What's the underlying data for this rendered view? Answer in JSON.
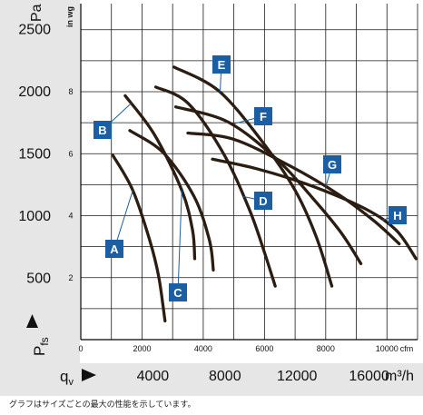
{
  "chart_data": {
    "type": "line",
    "ylabel_unit_pa": "Pa",
    "ylabel_unit_inwg": "in wg",
    "ylabel_symbol": "P",
    "ylabel_subscript": "fs",
    "xlabel_symbol": "q",
    "xlabel_subscript": "v",
    "x_unit_cfm": "cfm",
    "x_unit_m3h": "m³/h",
    "x_cfm_range": [
      0,
      11000
    ],
    "y_pa_range": [
      0,
      2700
    ],
    "grid": true,
    "pa_ticks": [
      {
        "value": 500,
        "label": "500"
      },
      {
        "value": 1000,
        "label": "1000"
      },
      {
        "value": 1500,
        "label": "1500"
      },
      {
        "value": 2000,
        "label": "2000"
      },
      {
        "value": 2500,
        "label": "2500"
      }
    ],
    "inwg_ticks": [
      {
        "value": 498,
        "label": "2"
      },
      {
        "value": 996,
        "label": "4"
      },
      {
        "value": 1494,
        "label": "6"
      },
      {
        "value": 1992,
        "label": "8"
      }
    ],
    "cfm_ticks": [
      {
        "value": 0,
        "label": "0"
      },
      {
        "value": 2000,
        "label": "2000"
      },
      {
        "value": 4000,
        "label": "4000"
      },
      {
        "value": 6000,
        "label": "6000"
      },
      {
        "value": 8000,
        "label": "8000"
      },
      {
        "value": 10000,
        "label": "10000"
      }
    ],
    "m3h_ticks": [
      {
        "value": 4000,
        "label": "4000"
      },
      {
        "value": 8000,
        "label": "8000"
      },
      {
        "value": 12000,
        "label": "12000"
      },
      {
        "value": 16000,
        "label": "16000"
      }
    ],
    "series": [
      {
        "name": "A",
        "points": [
          [
            1050,
            1480
          ],
          [
            1700,
            1200
          ],
          [
            2250,
            800
          ],
          [
            2550,
            500
          ],
          [
            2750,
            150
          ]
        ]
      },
      {
        "name": "B",
        "points": [
          [
            1450,
            1960
          ],
          [
            2400,
            1650
          ],
          [
            3300,
            1200
          ],
          [
            3650,
            880
          ],
          [
            3720,
            650
          ]
        ]
      },
      {
        "name": "C",
        "points": [
          [
            1600,
            1680
          ],
          [
            2700,
            1500
          ],
          [
            3700,
            1150
          ],
          [
            4200,
            800
          ],
          [
            4330,
            560
          ]
        ]
      },
      {
        "name": "D",
        "points": [
          [
            2450,
            2030
          ],
          [
            3500,
            1900
          ],
          [
            4650,
            1500
          ],
          [
            5500,
            1050
          ],
          [
            6000,
            700
          ],
          [
            6350,
            430
          ]
        ]
      },
      {
        "name": "E",
        "points": [
          [
            3050,
            2190
          ],
          [
            4500,
            2000
          ],
          [
            5900,
            1600
          ],
          [
            7000,
            1200
          ],
          [
            7700,
            820
          ],
          [
            8200,
            430
          ]
        ]
      },
      {
        "name": "F",
        "points": [
          [
            3100,
            1870
          ],
          [
            4800,
            1750
          ],
          [
            6400,
            1450
          ],
          [
            7600,
            1130
          ],
          [
            8500,
            860
          ],
          [
            9150,
            610
          ]
        ]
      },
      {
        "name": "G",
        "points": [
          [
            3500,
            1660
          ],
          [
            5000,
            1610
          ],
          [
            6800,
            1400
          ],
          [
            8400,
            1170
          ],
          [
            9600,
            950
          ],
          [
            10400,
            770
          ]
        ]
      },
      {
        "name": "H",
        "points": [
          [
            4300,
            1450
          ],
          [
            5800,
            1370
          ],
          [
            7600,
            1230
          ],
          [
            9300,
            1050
          ],
          [
            10300,
            880
          ],
          [
            10950,
            650
          ]
        ]
      }
    ]
  },
  "footnote": "グラフはサイズごとの最大の性能を示しています。"
}
